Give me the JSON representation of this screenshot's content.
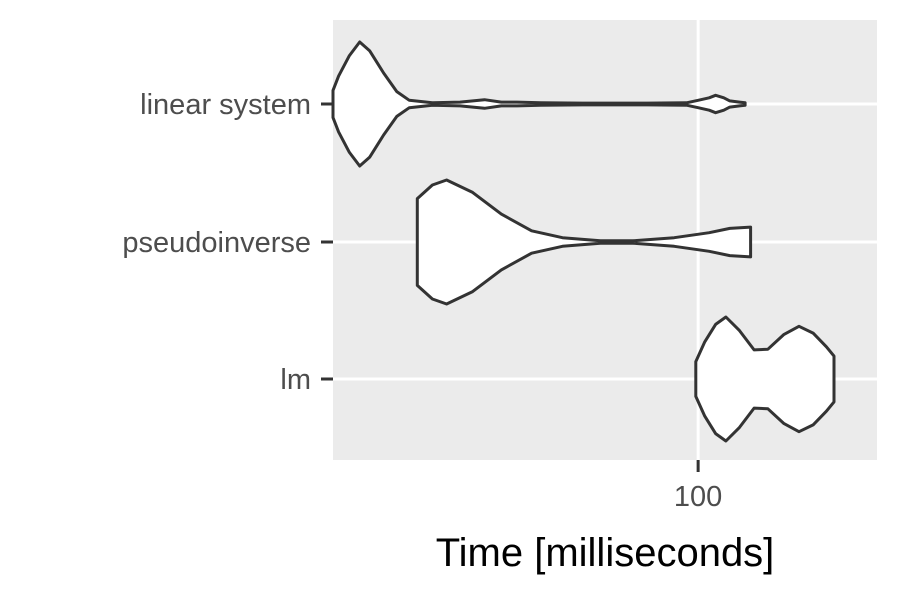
{
  "chart_data": {
    "type": "violin",
    "orientation": "horizontal",
    "xscale": "log",
    "xlim": [
      20,
      220
    ],
    "xlabel": "Time [milliseconds]",
    "ylabel": "",
    "title": "",
    "x_ticks": [
      100
    ],
    "x_tick_labels": [
      "100"
    ],
    "categories": [
      "linear system",
      "pseudoinverse",
      "lm"
    ],
    "grid": true,
    "background": "#ebebeb",
    "violin_fill": "#ffffff",
    "violin_stroke": "#333333",
    "series": [
      {
        "category": "linear system",
        "profile": [
          [
            20.0,
            0.22
          ],
          [
            20.5,
            0.45
          ],
          [
            21.5,
            0.78
          ],
          [
            22.5,
            1.0
          ],
          [
            23.5,
            0.86
          ],
          [
            25.0,
            0.5
          ],
          [
            26.5,
            0.2
          ],
          [
            28.0,
            0.06
          ],
          [
            31.0,
            0.02
          ],
          [
            35.0,
            0.03
          ],
          [
            39.0,
            0.07
          ],
          [
            42.0,
            0.03
          ],
          [
            45.0,
            0.03
          ],
          [
            50.0,
            0.02
          ],
          [
            60.0,
            0.015
          ],
          [
            80.0,
            0.015
          ],
          [
            95.0,
            0.02
          ],
          [
            100.0,
            0.06
          ],
          [
            105.0,
            0.1
          ],
          [
            108.0,
            0.14
          ],
          [
            112.0,
            0.1
          ],
          [
            115.0,
            0.05
          ],
          [
            120.0,
            0.03
          ],
          [
            123.0,
            0.02
          ]
        ]
      },
      {
        "category": "pseudoinverse",
        "profile": [
          [
            29.0,
            0.7
          ],
          [
            31.0,
            0.92
          ],
          [
            33.0,
            1.0
          ],
          [
            37.0,
            0.8
          ],
          [
            42.0,
            0.45
          ],
          [
            48.0,
            0.18
          ],
          [
            55.0,
            0.07
          ],
          [
            65.0,
            0.02
          ],
          [
            75.0,
            0.02
          ],
          [
            90.0,
            0.07
          ],
          [
            105.0,
            0.15
          ],
          [
            115.0,
            0.22
          ],
          [
            126.0,
            0.24
          ]
        ]
      },
      {
        "category": "lm",
        "profile": [
          [
            99.0,
            0.28
          ],
          [
            103.0,
            0.6
          ],
          [
            108.0,
            0.88
          ],
          [
            113.0,
            1.0
          ],
          [
            120.0,
            0.78
          ],
          [
            128.0,
            0.47
          ],
          [
            136.0,
            0.48
          ],
          [
            146.0,
            0.72
          ],
          [
            156.0,
            0.85
          ],
          [
            166.0,
            0.74
          ],
          [
            176.0,
            0.52
          ],
          [
            182.0,
            0.37
          ]
        ]
      }
    ]
  }
}
